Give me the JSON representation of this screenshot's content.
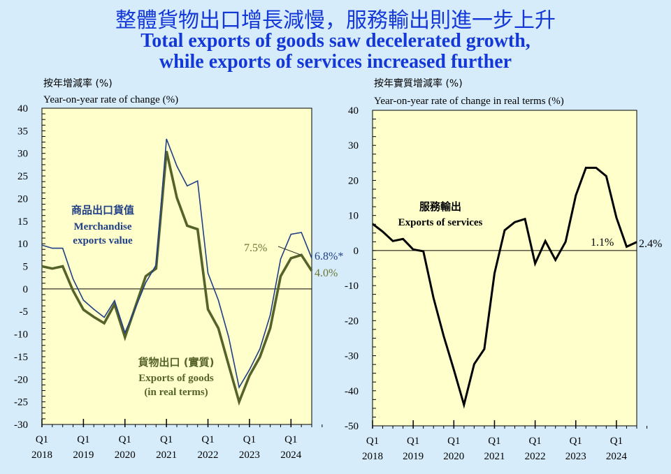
{
  "title_zh": "整體貨物出口增長減慢，服務輸出則進一步上升",
  "title_en_1": "Total exports of goods saw decelerated growth,",
  "title_en_2": "while exports of services increased further",
  "chart_data": [
    {
      "type": "line",
      "ylabel_zh": "按年增減率 (%)",
      "ylabel": "Year-on-year rate of change (%)",
      "ylim": [
        -30,
        40
      ],
      "yticks": [
        40,
        35,
        30,
        25,
        20,
        15,
        10,
        5,
        0,
        -5,
        -10,
        -15,
        -20,
        -25,
        -30
      ],
      "xtick_labels": [
        [
          "Q1",
          "2018"
        ],
        [
          "Q1",
          "2019"
        ],
        [
          "Q1",
          "2020"
        ],
        [
          "Q1",
          "2021"
        ],
        [
          "Q1",
          "2022"
        ],
        [
          "Q1",
          "2023"
        ],
        [
          "Q1",
          "2024"
        ]
      ],
      "x_start": "2018 Q1",
      "series": [
        {
          "name_zh": "商品出口貨值",
          "name": "Merchandise",
          "name_2": "exports value",
          "color": "#1f3f86",
          "values": [
            9.7,
            9.0,
            9.0,
            2.2,
            -2.5,
            -4.5,
            -6.3,
            -2.6,
            -9.7,
            -4.3,
            1.4,
            5.3,
            33.2,
            27.2,
            22.8,
            23.9,
            3.5,
            -2.5,
            -10.7,
            -21.8,
            -17.9,
            -13.3,
            -5.8,
            6.6,
            12.1,
            12.5,
            6.8
          ],
          "end_label": "6.8%*"
        },
        {
          "name_zh": "貨物出口 (實質)",
          "name": "Exports of goods",
          "name_2": "(in real terms)",
          "color": "#55622a",
          "values": [
            5.0,
            4.5,
            5.0,
            -0.4,
            -4.6,
            -6.2,
            -7.6,
            -3.4,
            -10.7,
            -4.0,
            2.8,
            4.5,
            30.5,
            20.2,
            14.0,
            13.2,
            -4.5,
            -8.7,
            -16.9,
            -25.0,
            -19.2,
            -15.1,
            -8.7,
            2.8,
            6.8,
            7.5,
            4.0
          ],
          "end_label": "4.0%",
          "callout": "7.5%"
        }
      ]
    },
    {
      "type": "line",
      "ylabel_zh": "按年實質增減率 (%)",
      "ylabel": "Year-on-year rate of change in real terms (%)",
      "ylim": [
        -50,
        40
      ],
      "yticks": [
        40,
        30,
        20,
        10,
        0,
        -10,
        -20,
        -30,
        -40,
        -50
      ],
      "xtick_labels": [
        [
          "Q1",
          "2018"
        ],
        [
          "Q1",
          "2019"
        ],
        [
          "Q1",
          "2020"
        ],
        [
          "Q1",
          "2021"
        ],
        [
          "Q1",
          "2022"
        ],
        [
          "Q1",
          "2023"
        ],
        [
          "Q1",
          "2024"
        ]
      ],
      "x_start": "2018 Q1",
      "series": [
        {
          "name_zh": "服務輸出",
          "name": "Exports of services",
          "color": "#000000",
          "values": [
            7.6,
            5.4,
            2.7,
            3.3,
            0.3,
            -0.2,
            -13.5,
            -24.4,
            -34.0,
            -44.0,
            -32.4,
            -28.1,
            -6.5,
            5.8,
            8.1,
            9.0,
            -3.7,
            2.7,
            -2.7,
            2.5,
            15.7,
            23.6,
            23.6,
            21.2,
            9.4,
            1.1,
            2.4
          ],
          "end_label": "2.4%",
          "callout": "1.1%"
        }
      ]
    }
  ],
  "colors": {
    "background": "#d6ecfa",
    "plot": "#ffffcc",
    "title": "#1438d8"
  }
}
